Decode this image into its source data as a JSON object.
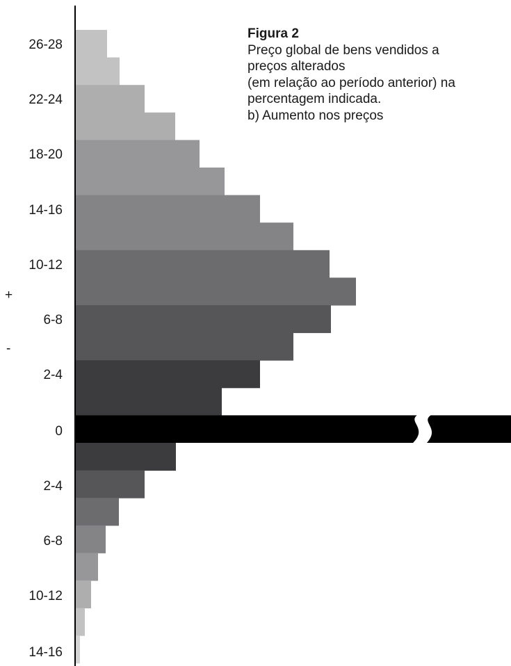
{
  "caption": {
    "title": "Figura 2",
    "lines": [
      "Preço global de bens vendidos a",
      "preços alterados",
      "(em relação ao período anterior) na",
      "percentagem indicada.",
      "b) Aumento nos preços"
    ]
  },
  "sign_labels": {
    "plus": "+",
    "minus": "-"
  },
  "chart_data": {
    "type": "bar",
    "orientation": "horizontal",
    "title": "",
    "xlabel": "",
    "ylabel": "",
    "grid": false,
    "legend": "none",
    "axis_break_on_zero_bar": true,
    "tick_labels": [
      "26-28",
      "22-24",
      "18-20",
      "14-16",
      "10-12",
      "6-8",
      "2-4",
      "0",
      "2-4",
      "6-8",
      "10-12",
      "14-16"
    ],
    "bars": [
      {
        "sign": "+",
        "value": 46,
        "color": "#c2c2c2"
      },
      {
        "sign": "+",
        "value": 64,
        "color": "#c2c2c2"
      },
      {
        "sign": "+",
        "value": 100,
        "color": "#aeaeaf"
      },
      {
        "sign": "+",
        "value": 144,
        "color": "#aeaeaf"
      },
      {
        "sign": "+",
        "value": 179,
        "color": "#97979a"
      },
      {
        "sign": "+",
        "value": 215,
        "color": "#97979a"
      },
      {
        "sign": "+",
        "value": 266,
        "color": "#848487"
      },
      {
        "sign": "+",
        "value": 314,
        "color": "#848487"
      },
      {
        "sign": "+",
        "value": 366,
        "color": "#6c6c6f"
      },
      {
        "sign": "+",
        "value": 404,
        "color": "#6c6c6f"
      },
      {
        "sign": "+",
        "value": 368,
        "color": "#565658"
      },
      {
        "sign": "+",
        "value": 314,
        "color": "#565658"
      },
      {
        "sign": "+",
        "value": 266,
        "color": "#3c3c3e"
      },
      {
        "sign": "+",
        "value": 211,
        "color": "#3c3c3e"
      },
      {
        "sign": "0",
        "value": 628,
        "color": "#000000"
      },
      {
        "sign": "-",
        "value": 145,
        "color": "#3c3c3e"
      },
      {
        "sign": "-",
        "value": 100,
        "color": "#565658"
      },
      {
        "sign": "-",
        "value": 63,
        "color": "#6c6c6f"
      },
      {
        "sign": "-",
        "value": 44,
        "color": "#848487"
      },
      {
        "sign": "-",
        "value": 33,
        "color": "#97979a"
      },
      {
        "sign": "-",
        "value": 23,
        "color": "#aeaeaf"
      },
      {
        "sign": "-",
        "value": 14,
        "color": "#c2c2c2"
      },
      {
        "sign": "-",
        "value": 7,
        "color": "#d4d4d4"
      }
    ]
  }
}
